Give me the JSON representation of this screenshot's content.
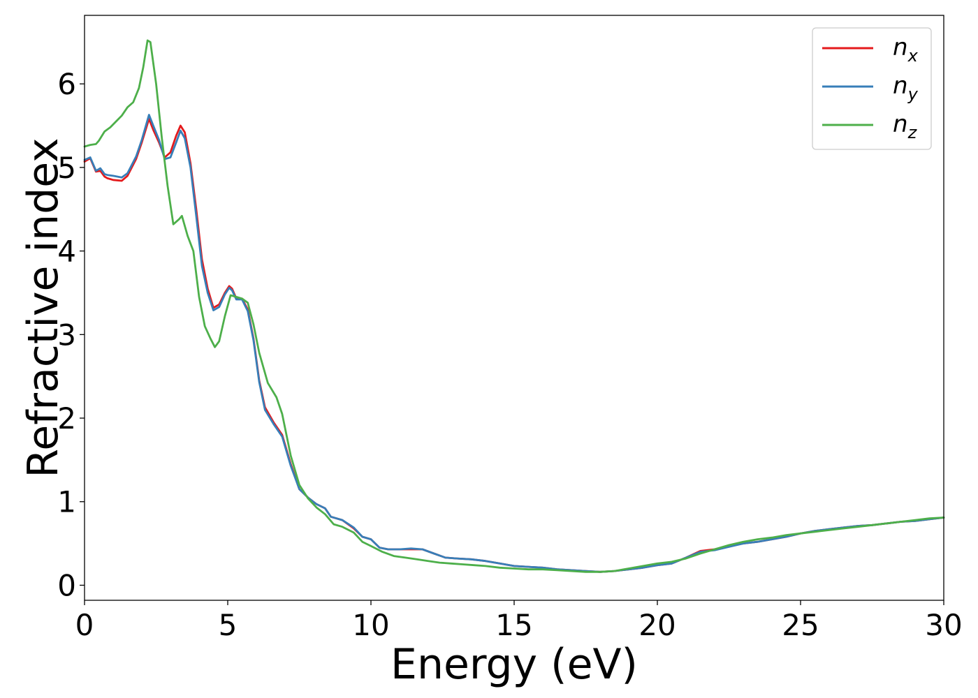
{
  "chart_data": {
    "type": "line",
    "xlabel": "Energy (eV)",
    "ylabel": "Refractive index",
    "xlim": [
      0,
      30
    ],
    "ylim": [
      -0.18,
      6.82
    ],
    "xticks": [
      0,
      5,
      10,
      15,
      20,
      25,
      30
    ],
    "yticks": [
      0,
      1,
      2,
      3,
      4,
      5,
      6
    ],
    "grid": false,
    "legend_position": "top-right",
    "series": [
      {
        "name": "n_x",
        "label_main": "n",
        "label_sub": "x",
        "color": "#e41a1c",
        "x": [
          0,
          0.2,
          0.4,
          0.55,
          0.7,
          0.8,
          1.0,
          1.3,
          1.5,
          1.8,
          2.0,
          2.25,
          2.4,
          2.6,
          2.8,
          3.0,
          3.2,
          3.35,
          3.5,
          3.7,
          3.9,
          4.1,
          4.3,
          4.5,
          4.7,
          4.9,
          5.05,
          5.15,
          5.3,
          5.5,
          5.7,
          5.9,
          6.1,
          6.3,
          6.6,
          6.9,
          7.2,
          7.5,
          7.8,
          8.1,
          8.4,
          8.6,
          9.0,
          9.4,
          9.7,
          10.0,
          10.3,
          10.6,
          11.0,
          11.4,
          11.8,
          12.2,
          12.6,
          13.0,
          13.5,
          14.0,
          14.5,
          15.0,
          15.5,
          16.0,
          16.5,
          17.0,
          17.5,
          18.0,
          18.5,
          19.0,
          19.5,
          20.0,
          20.5,
          21.0,
          21.5,
          22.0,
          22.5,
          23.0,
          23.5,
          24.0,
          24.5,
          25.0,
          25.5,
          26.0,
          26.5,
          27.0,
          27.5,
          28.0,
          28.5,
          29.0,
          29.5,
          30.0
        ],
        "values": [
          5.07,
          5.11,
          4.95,
          4.96,
          4.89,
          4.87,
          4.85,
          4.84,
          4.9,
          5.1,
          5.3,
          5.58,
          5.45,
          5.3,
          5.12,
          5.18,
          5.38,
          5.5,
          5.42,
          5.05,
          4.5,
          3.9,
          3.55,
          3.32,
          3.36,
          3.5,
          3.58,
          3.55,
          3.43,
          3.43,
          3.3,
          2.95,
          2.45,
          2.13,
          1.95,
          1.8,
          1.45,
          1.15,
          1.05,
          0.97,
          0.92,
          0.82,
          0.78,
          0.68,
          0.58,
          0.55,
          0.45,
          0.43,
          0.43,
          0.43,
          0.43,
          0.38,
          0.33,
          0.32,
          0.31,
          0.29,
          0.26,
          0.23,
          0.22,
          0.21,
          0.19,
          0.18,
          0.17,
          0.16,
          0.17,
          0.19,
          0.21,
          0.24,
          0.26,
          0.33,
          0.41,
          0.43,
          0.47,
          0.5,
          0.52,
          0.55,
          0.58,
          0.62,
          0.65,
          0.67,
          0.69,
          0.71,
          0.72,
          0.74,
          0.76,
          0.77,
          0.79,
          0.81
        ]
      },
      {
        "name": "n_y",
        "label_main": "n",
        "label_sub": "y",
        "color": "#377eb8",
        "x": [
          0,
          0.2,
          0.4,
          0.55,
          0.7,
          0.8,
          1.0,
          1.3,
          1.5,
          1.8,
          2.0,
          2.25,
          2.4,
          2.6,
          2.8,
          3.0,
          3.2,
          3.35,
          3.5,
          3.7,
          3.9,
          4.1,
          4.3,
          4.5,
          4.7,
          4.9,
          5.05,
          5.15,
          5.3,
          5.5,
          5.7,
          5.9,
          6.1,
          6.3,
          6.6,
          6.9,
          7.2,
          7.5,
          7.8,
          8.1,
          8.4,
          8.6,
          9.0,
          9.4,
          9.7,
          10.0,
          10.3,
          10.6,
          11.0,
          11.4,
          11.8,
          12.2,
          12.6,
          13.0,
          13.5,
          14.0,
          14.5,
          15.0,
          15.5,
          16.0,
          16.5,
          17.0,
          17.5,
          18.0,
          18.5,
          19.0,
          19.5,
          20.0,
          20.5,
          21.0,
          21.5,
          22.0,
          22.5,
          23.0,
          23.5,
          24.0,
          24.5,
          25.0,
          25.5,
          26.0,
          26.5,
          27.0,
          27.5,
          28.0,
          28.5,
          29.0,
          29.5,
          30.0
        ],
        "values": [
          5.09,
          5.12,
          4.96,
          4.99,
          4.92,
          4.91,
          4.9,
          4.88,
          4.93,
          5.13,
          5.33,
          5.63,
          5.5,
          5.33,
          5.1,
          5.12,
          5.3,
          5.44,
          5.35,
          5.0,
          4.42,
          3.82,
          3.5,
          3.29,
          3.33,
          3.48,
          3.56,
          3.53,
          3.42,
          3.42,
          3.28,
          2.93,
          2.43,
          2.1,
          1.93,
          1.78,
          1.43,
          1.15,
          1.05,
          0.97,
          0.92,
          0.82,
          0.78,
          0.69,
          0.58,
          0.55,
          0.45,
          0.43,
          0.43,
          0.44,
          0.43,
          0.38,
          0.33,
          0.32,
          0.31,
          0.29,
          0.26,
          0.23,
          0.22,
          0.21,
          0.19,
          0.18,
          0.17,
          0.16,
          0.17,
          0.19,
          0.21,
          0.24,
          0.26,
          0.33,
          0.4,
          0.42,
          0.46,
          0.5,
          0.52,
          0.55,
          0.58,
          0.62,
          0.65,
          0.67,
          0.69,
          0.71,
          0.72,
          0.74,
          0.76,
          0.77,
          0.79,
          0.81
        ]
      },
      {
        "name": "n_z",
        "label_main": "n",
        "label_sub": "z",
        "color": "#4daf4a",
        "x": [
          0,
          0.2,
          0.4,
          0.5,
          0.7,
          0.9,
          1.1,
          1.3,
          1.5,
          1.7,
          1.9,
          2.05,
          2.2,
          2.3,
          2.5,
          2.7,
          2.9,
          3.1,
          3.3,
          3.4,
          3.6,
          3.8,
          4.0,
          4.2,
          4.4,
          4.55,
          4.7,
          4.9,
          5.1,
          5.3,
          5.5,
          5.7,
          5.9,
          6.1,
          6.4,
          6.7,
          6.9,
          7.2,
          7.5,
          7.8,
          8.1,
          8.4,
          8.7,
          9.0,
          9.4,
          9.7,
          10.0,
          10.4,
          10.8,
          11.2,
          11.6,
          12.0,
          12.4,
          12.8,
          13.2,
          13.6,
          14.0,
          14.5,
          15.0,
          15.5,
          16.0,
          16.5,
          17.0,
          17.5,
          18.0,
          18.5,
          19.0,
          19.5,
          20.0,
          20.5,
          21.0,
          21.5,
          22.0,
          22.5,
          23.0,
          23.5,
          24.0,
          24.5,
          25.0,
          25.5,
          26.0,
          26.5,
          27.0,
          27.5,
          28.0,
          28.5,
          29.0,
          29.5,
          30.0
        ],
        "values": [
          5.25,
          5.27,
          5.28,
          5.32,
          5.43,
          5.48,
          5.55,
          5.62,
          5.72,
          5.78,
          5.95,
          6.2,
          6.52,
          6.5,
          6.0,
          5.35,
          4.78,
          4.32,
          4.38,
          4.42,
          4.18,
          4.0,
          3.45,
          3.1,
          2.95,
          2.85,
          2.92,
          3.22,
          3.47,
          3.45,
          3.43,
          3.38,
          3.12,
          2.78,
          2.42,
          2.25,
          2.05,
          1.55,
          1.2,
          1.04,
          0.93,
          0.85,
          0.73,
          0.7,
          0.63,
          0.52,
          0.47,
          0.4,
          0.35,
          0.33,
          0.31,
          0.29,
          0.27,
          0.26,
          0.25,
          0.24,
          0.23,
          0.21,
          0.2,
          0.19,
          0.19,
          0.18,
          0.17,
          0.16,
          0.16,
          0.17,
          0.2,
          0.23,
          0.26,
          0.28,
          0.32,
          0.38,
          0.43,
          0.48,
          0.52,
          0.55,
          0.57,
          0.6,
          0.62,
          0.64,
          0.66,
          0.68,
          0.7,
          0.72,
          0.74,
          0.76,
          0.78,
          0.8,
          0.81
        ]
      }
    ]
  }
}
